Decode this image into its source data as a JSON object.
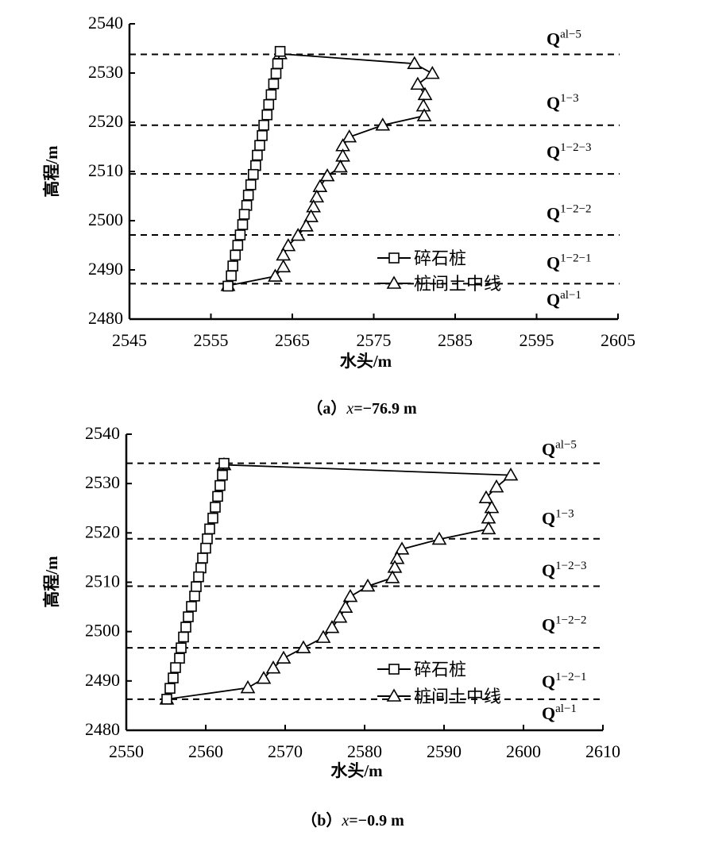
{
  "chart_data": [
    {
      "type": "line",
      "caption": "（a）x=−76.9 m",
      "caption_prefix": "（a）",
      "caption_var": "x",
      "caption_value": "=−76.9 m",
      "xlabel": "水头/m",
      "ylabel": "高程/m",
      "xlim": [
        2545,
        2605
      ],
      "ylim": [
        2480,
        2540
      ],
      "xticks": [
        2545,
        2555,
        2565,
        2575,
        2585,
        2595,
        2605
      ],
      "yticks": [
        2480,
        2490,
        2500,
        2510,
        2520,
        2530,
        2540
      ],
      "grid": false,
      "legend_position": "lower-right",
      "series": [
        {
          "name": "碎石桩",
          "marker": "square",
          "x": [
            2563.5,
            2563.2,
            2563.0,
            2562.7,
            2562.4,
            2562.1,
            2561.9,
            2561.5,
            2561.3,
            2561.0,
            2560.7,
            2560.5,
            2560.2,
            2559.9,
            2559.6,
            2559.4,
            2559.1,
            2558.9,
            2558.6,
            2558.3,
            2558.0,
            2557.7,
            2557.5,
            2557.1
          ],
          "y": [
            2534.4,
            2531.9,
            2529.9,
            2527.8,
            2525.6,
            2523.6,
            2521.5,
            2519.4,
            2517.3,
            2515.3,
            2513.3,
            2511.2,
            2509.4,
            2507.3,
            2505.2,
            2503.1,
            2501.3,
            2499.2,
            2497.1,
            2495.0,
            2493.0,
            2490.8,
            2488.8,
            2486.7
          ]
        },
        {
          "name": "桩间土中线",
          "marker": "triangle",
          "x": [
            2563.5,
            2580.0,
            2582.2,
            2580.4,
            2581.3,
            2581.1,
            2581.2,
            2576.1,
            2572.0,
            2571.2,
            2571.2,
            2570.9,
            2569.3,
            2568.4,
            2568.0,
            2567.6,
            2567.3,
            2566.7,
            2565.7,
            2564.5,
            2563.9,
            2563.9,
            2562.9,
            2557.1
          ],
          "y": [
            2533.9,
            2531.9,
            2529.9,
            2527.7,
            2525.6,
            2523.3,
            2521.3,
            2519.4,
            2517.0,
            2515.2,
            2513.1,
            2510.9,
            2509.1,
            2506.9,
            2504.8,
            2502.8,
            2500.8,
            2498.9,
            2497.0,
            2494.9,
            2493.0,
            2490.6,
            2488.7,
            2486.8
          ]
        }
      ],
      "layer_boundaries": [
        2533.8,
        2519.4,
        2509.5,
        2497.1,
        2487.2
      ],
      "layer_labels": [
        {
          "base": "Q",
          "sup": "al−5",
          "y": 2537
        },
        {
          "base": "Q",
          "sup": "1−3",
          "y": 2524
        },
        {
          "base": "Q",
          "sup": "1−2−3",
          "y": 2514
        },
        {
          "base": "Q",
          "sup": "1−2−2",
          "y": 2501.5
        },
        {
          "base": "Q",
          "sup": "1−2−1",
          "y": 2491.5
        },
        {
          "base": "Q",
          "sup": "al−1",
          "y": 2484
        }
      ]
    },
    {
      "type": "line",
      "caption": "（b）x=−0.9 m",
      "caption_prefix": "（b）",
      "caption_var": "x",
      "caption_value": "=−0.9 m",
      "xlabel": "水头/m",
      "ylabel": "高程/m",
      "xlim": [
        2550,
        2610
      ],
      "ylim": [
        2480,
        2540
      ],
      "xticks": [
        2550,
        2560,
        2570,
        2580,
        2590,
        2600,
        2610
      ],
      "yticks": [
        2480,
        2490,
        2500,
        2510,
        2520,
        2530,
        2540
      ],
      "grid": false,
      "legend_position": "lower-right",
      "series": [
        {
          "name": "碎石桩",
          "marker": "square",
          "x": [
            2562.3,
            2562.1,
            2561.8,
            2561.5,
            2561.2,
            2560.9,
            2560.5,
            2560.2,
            2560.0,
            2559.6,
            2559.4,
            2559.1,
            2558.8,
            2558.6,
            2558.2,
            2557.8,
            2557.5,
            2557.2,
            2556.9,
            2556.7,
            2556.2,
            2555.9,
            2555.5,
            2555.1
          ],
          "y": [
            2534.1,
            2531.7,
            2529.6,
            2527.4,
            2525.2,
            2523.0,
            2520.8,
            2518.8,
            2516.9,
            2514.9,
            2512.9,
            2511.1,
            2509.1,
            2507.2,
            2505.1,
            2503.0,
            2500.9,
            2498.9,
            2496.7,
            2494.6,
            2492.7,
            2490.6,
            2488.5,
            2486.3
          ]
        },
        {
          "name": "桩间土中线",
          "marker": "triangle",
          "x": [
            2562.3,
            2598.4,
            2596.6,
            2595.3,
            2596.0,
            2595.6,
            2595.6,
            2589.4,
            2584.7,
            2584.1,
            2583.8,
            2583.5,
            2580.4,
            2578.2,
            2577.6,
            2576.9,
            2575.9,
            2574.8,
            2572.3,
            2569.8,
            2568.5,
            2567.3,
            2565.3,
            2555.1
          ],
          "y": [
            2533.8,
            2531.7,
            2529.3,
            2527.1,
            2525.1,
            2523.0,
            2520.8,
            2518.7,
            2516.7,
            2514.8,
            2513.0,
            2510.9,
            2509.2,
            2507.1,
            2504.9,
            2502.9,
            2500.8,
            2498.8,
            2496.7,
            2494.6,
            2492.6,
            2490.5,
            2488.6,
            2486.3
          ]
        }
      ],
      "layer_boundaries": [
        2534.1,
        2518.8,
        2509.2,
        2496.7,
        2486.3
      ],
      "layer_labels": [
        {
          "base": "Q",
          "sup": "al−5",
          "y": 2537
        },
        {
          "base": "Q",
          "sup": "1−3",
          "y": 2523
        },
        {
          "base": "Q",
          "sup": "1−2−3",
          "y": 2512.5
        },
        {
          "base": "Q",
          "sup": "1−2−2",
          "y": 2501.5
        },
        {
          "base": "Q",
          "sup": "1−2−1",
          "y": 2490
        },
        {
          "base": "Q",
          "sup": "al−1",
          "y": 2483.5
        }
      ]
    }
  ]
}
